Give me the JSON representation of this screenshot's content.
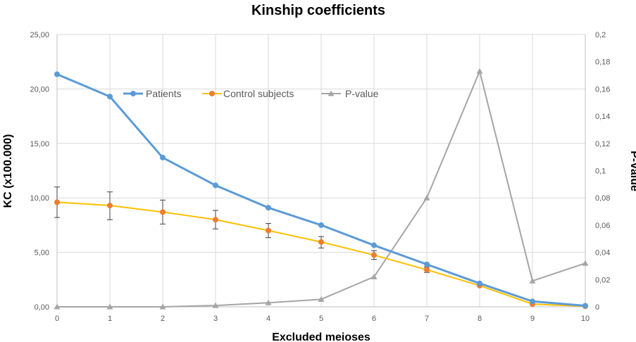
{
  "chart_data": {
    "type": "line",
    "title": "Kinship coefficients",
    "xlabel": "Excluded meioses",
    "ylabel": "KC (x100.000)",
    "y2label": "P-Value",
    "x": [
      0,
      1,
      2,
      3,
      4,
      5,
      6,
      7,
      8,
      9,
      10
    ],
    "x_ticks": [
      "0",
      "1",
      "2",
      "3",
      "4",
      "5",
      "6",
      "7",
      "8",
      "9",
      "10"
    ],
    "ylim": [
      0,
      25
    ],
    "y_ticks": [
      "0,00",
      "5,00",
      "10,00",
      "15,00",
      "20,00",
      "25,00"
    ],
    "y2lim": [
      0,
      0.2
    ],
    "y2_ticks": [
      "0",
      "0,02",
      "0,04",
      "0,06",
      "0,08",
      "0,1",
      "0,12",
      "0,14",
      "0,16",
      "0,18",
      "0,2"
    ],
    "grid": true,
    "legend_position": "top-center",
    "series": [
      {
        "name": "Patients",
        "axis": "left",
        "color": "#5b9bd5",
        "marker": "circle",
        "values": [
          21.35,
          19.3,
          13.7,
          11.15,
          9.1,
          7.5,
          5.65,
          3.9,
          2.15,
          0.5,
          0.1
        ]
      },
      {
        "name": "Control subjects",
        "axis": "left",
        "color": "#ffc000",
        "marker_color": "#ed7d31",
        "marker": "circle",
        "values": [
          9.6,
          9.3,
          8.7,
          8.0,
          7.0,
          5.95,
          4.75,
          3.4,
          1.95,
          0.25,
          0.05
        ],
        "error_low": [
          8.2,
          8.0,
          7.6,
          7.15,
          6.35,
          5.4,
          4.35,
          3.15,
          null,
          null,
          null
        ],
        "error_high": [
          11.0,
          10.55,
          9.8,
          8.85,
          7.65,
          6.45,
          5.15,
          3.65,
          null,
          null,
          null
        ]
      },
      {
        "name": "P-value",
        "axis": "right",
        "color": "#a5a5a5",
        "marker": "triangle",
        "values": [
          0.0,
          0.0,
          0.0,
          0.001,
          0.003,
          0.0055,
          0.022,
          0.08,
          0.173,
          0.019,
          0.032
        ]
      }
    ]
  }
}
